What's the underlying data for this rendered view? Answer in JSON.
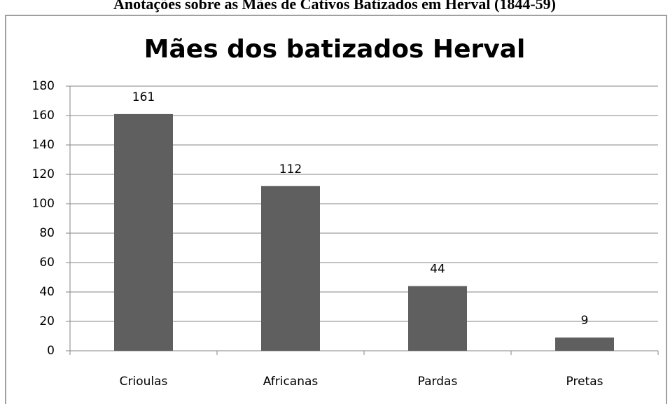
{
  "chart_data": {
    "type": "bar",
    "caption": "Anotações sobre as Mães de Cativos Batizados em Herval (1844-59)",
    "title": "Mães dos batizados Herval",
    "categories": [
      "Crioulas",
      "Africanas",
      "Pardas",
      "Pretas"
    ],
    "values": [
      161,
      112,
      44,
      9
    ],
    "color": "#5f5f5f",
    "ylim": [
      0,
      180
    ],
    "yticks": [
      0,
      20,
      40,
      60,
      80,
      100,
      120,
      140,
      160,
      180
    ],
    "grid": true
  }
}
